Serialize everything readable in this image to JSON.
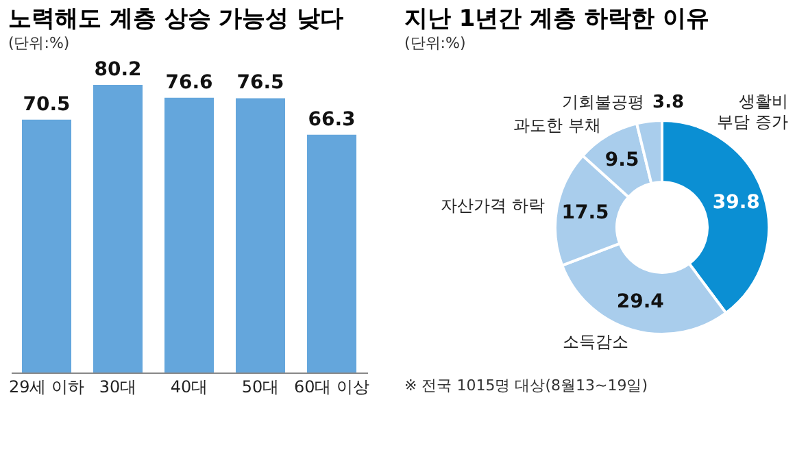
{
  "chart_data": [
    {
      "type": "bar",
      "title": "노력해도 계층 상승 가능성 낮다",
      "subtitle": "(단위:%)",
      "categories": [
        "29세 이하",
        "30대",
        "40대",
        "50대",
        "60대 이상"
      ],
      "values": [
        70.5,
        80.2,
        76.6,
        76.5,
        66.3
      ],
      "color": "#64a6dc",
      "data_labels": true
    },
    {
      "type": "donut",
      "title": "지난 1년간 계층 하락한 이유",
      "subtitle": "(단위:%)",
      "categories": [
        "생활비 부담 증가",
        "소득감소",
        "자산가격 하락",
        "과도한 부채",
        "기회불공평"
      ],
      "values": [
        39.8,
        29.4,
        17.5,
        9.5,
        3.8
      ],
      "colors": [
        "#0b8fd3",
        "#a9cdec",
        "#a9cdec",
        "#a9cdec",
        "#a9cdec"
      ],
      "data_labels": true,
      "annotations": [
        "※ 전국 1015명 대상(8월13~19일)"
      ]
    }
  ]
}
